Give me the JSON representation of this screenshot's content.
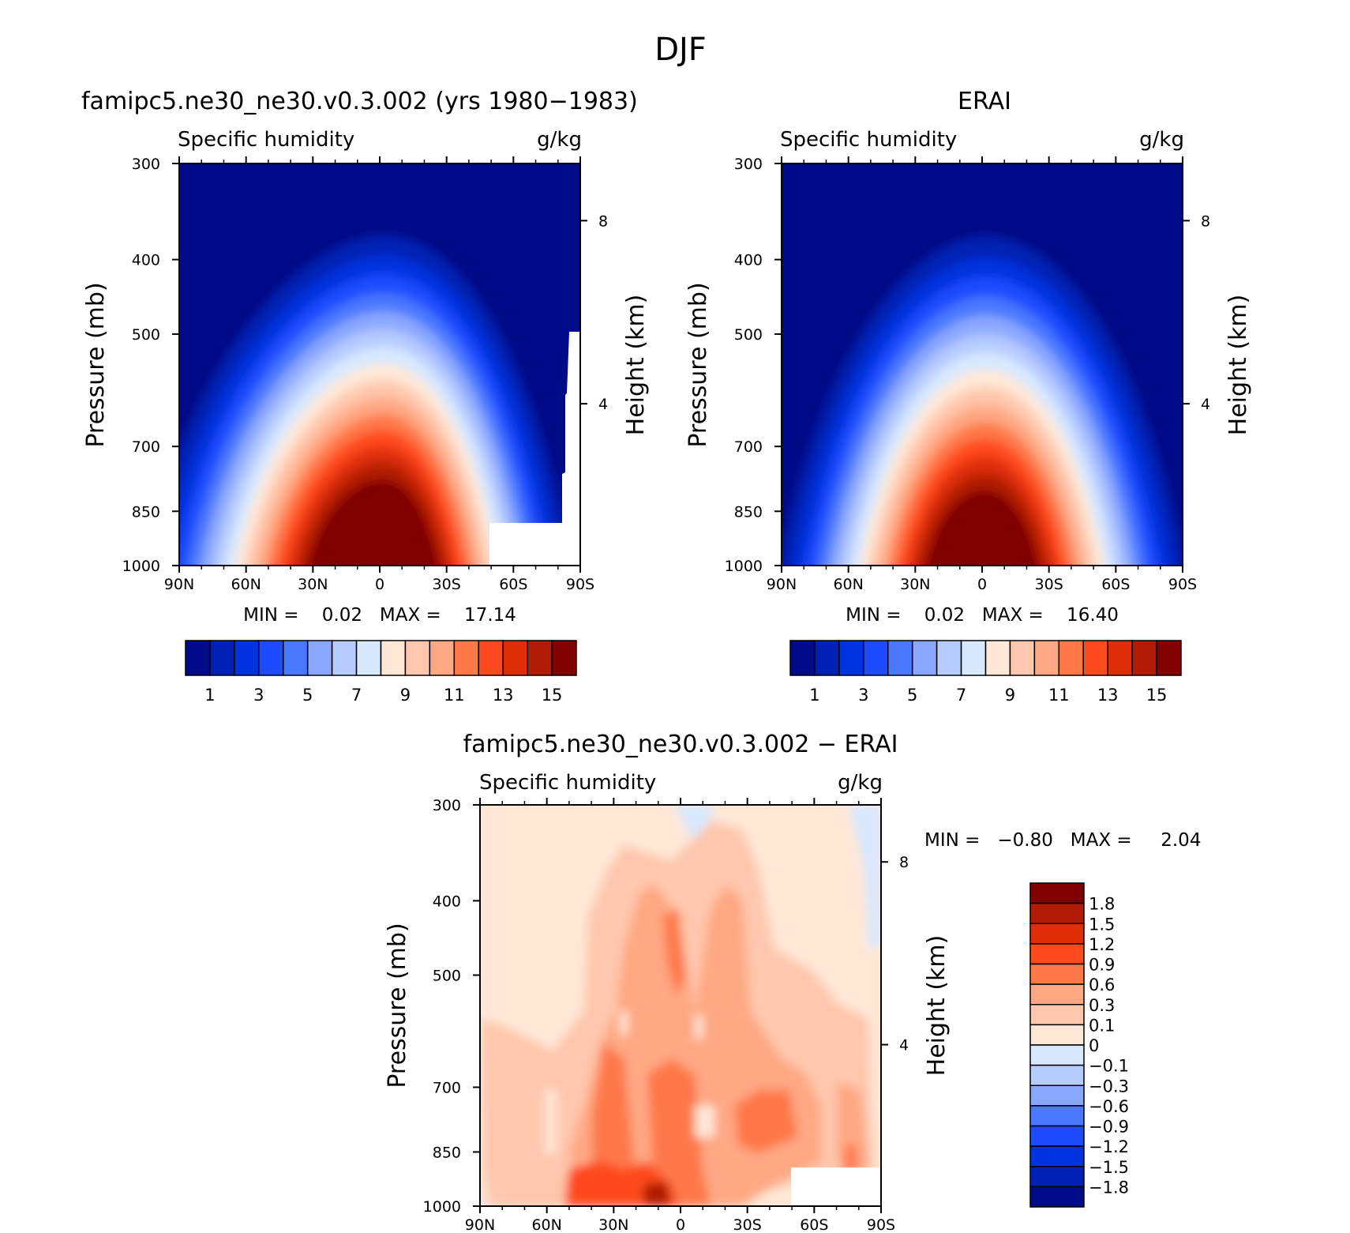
{
  "figure": {
    "title": "DJF"
  },
  "colors": {
    "scale15": [
      "#000b87",
      "#0021b3",
      "#0033dd",
      "#1e4bff",
      "#4a78ff",
      "#8aa7ff",
      "#b6cbff",
      "#d8e9ff",
      "#ffe7d6",
      "#ffc7ad",
      "#ffa883",
      "#ff7848",
      "#ff4a1e",
      "#dd2e08",
      "#b01c06",
      "#800000"
    ],
    "diff": [
      "#000b87",
      "#0021b3",
      "#0033dd",
      "#1e4bff",
      "#4a78ff",
      "#8aa7ff",
      "#b6cbff",
      "#d8e9ff",
      "#ffe7d6",
      "#ffc7ad",
      "#ffa883",
      "#ff7848",
      "#ff4a1e",
      "#dd2e08",
      "#b01c06",
      "#800000"
    ]
  },
  "chart_data": [
    {
      "type": "heatmap",
      "title": "famipc5.ne30_ne30.v0.3.002 (yrs 1980−1983)",
      "subtitle_left": "Specific humidity",
      "subtitle_right": "g/kg",
      "ylabel": "Pressure (mb)",
      "ylabel_right": "Height (km)",
      "x_ticks": [
        "90N",
        "60N",
        "30N",
        "0",
        "30S",
        "60S",
        "90S"
      ],
      "y_ticks": [
        "300",
        "400",
        "500",
        "700",
        "850",
        "1000"
      ],
      "y_right_ticks": [
        "8",
        "4"
      ],
      "min_max": "MIN =    0.02   MAX =    17.14",
      "levels": [
        0,
        1,
        2,
        3,
        4,
        5,
        6,
        7,
        8,
        9,
        10,
        11,
        12,
        13,
        14,
        15
      ],
      "colorbar_labels": [
        "1",
        "3",
        "5",
        "7",
        "9",
        "11",
        "13",
        "15"
      ],
      "peak_lat": 0,
      "max_value": 17.14
    },
    {
      "type": "heatmap",
      "title": "ERAI",
      "subtitle_left": "Specific humidity",
      "subtitle_right": "g/kg",
      "ylabel": "Pressure (mb)",
      "ylabel_right": "Height (km)",
      "x_ticks": [
        "90N",
        "60N",
        "30N",
        "0",
        "30S",
        "60S",
        "90S"
      ],
      "y_ticks": [
        "300",
        "400",
        "500",
        "700",
        "850",
        "1000"
      ],
      "y_right_ticks": [
        "8",
        "4"
      ],
      "min_max": "MIN =    0.02   MAX =    16.40",
      "levels": [
        0,
        1,
        2,
        3,
        4,
        5,
        6,
        7,
        8,
        9,
        10,
        11,
        12,
        13,
        14,
        15
      ],
      "colorbar_labels": [
        "1",
        "3",
        "5",
        "7",
        "9",
        "11",
        "13",
        "15"
      ],
      "peak_lat": 0,
      "max_value": 16.4
    },
    {
      "type": "heatmap",
      "title": "famipc5.ne30_ne30.v0.3.002 − ERAI",
      "subtitle_left": "Specific humidity",
      "subtitle_right": "g/kg",
      "ylabel": "Pressure (mb)",
      "ylabel_right": "Height (km)",
      "x_ticks": [
        "90N",
        "60N",
        "30N",
        "0",
        "30S",
        "60S",
        "90S"
      ],
      "y_ticks": [
        "300",
        "400",
        "500",
        "700",
        "850",
        "1000"
      ],
      "y_right_ticks": [
        "8",
        "4"
      ],
      "min_max": "MIN =   −0.80   MAX =     2.04",
      "colorbar_labels": [
        "1.8",
        "1.5",
        "1.2",
        "0.9",
        "0.6",
        "0.3",
        "0.1",
        "0",
        "−0.1",
        "−0.3",
        "−0.6",
        "−0.9",
        "−1.2",
        "−1.5",
        "−1.8"
      ],
      "min_value": -0.8,
      "max_value": 2.04
    }
  ]
}
